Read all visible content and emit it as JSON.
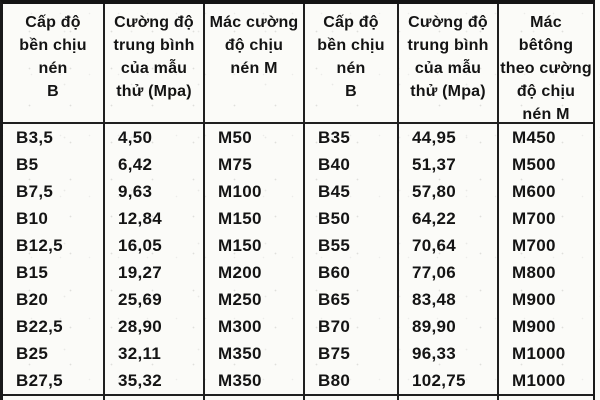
{
  "table": {
    "headers": [
      "Cấp độ\nbền chịu\nnén\nB",
      "Cường độ\ntrung bình\ncủa mẫu\nthử (Mpa)",
      "Mác cường\nđộ chịu\nnén M",
      "Cấp độ\nbền chịu\nnén\nB",
      "Cường độ\ntrung bình\ncủa mẫu\nthử (Mpa)",
      "Mác\nbêtông\ntheo cường\nđộ chịu\nnén M"
    ],
    "rows": [
      [
        "B3,5",
        "4,50",
        "M50",
        "B35",
        "44,95",
        "M450"
      ],
      [
        "B5",
        "6,42",
        "M75",
        "B40",
        "51,37",
        "M500"
      ],
      [
        "B7,5",
        "9,63",
        "M100",
        "B45",
        "57,80",
        "M600"
      ],
      [
        "B10",
        "12,84",
        "M150",
        "B50",
        "64,22",
        "M700"
      ],
      [
        "B12,5",
        "16,05",
        "M150",
        "B55",
        "70,64",
        "M700"
      ],
      [
        "B15",
        "19,27",
        "M200",
        "B60",
        "77,06",
        "M800"
      ],
      [
        "B20",
        "25,69",
        "M250",
        "B65",
        "83,48",
        "M900"
      ],
      [
        "B22,5",
        "28,90",
        "M300",
        "B70",
        "89,90",
        "M900"
      ],
      [
        "B25",
        "32,11",
        "M350",
        "B75",
        "96,33",
        "M1000"
      ],
      [
        "B27,5",
        "35,32",
        "M350",
        "B80",
        "102,75",
        "M1000"
      ]
    ],
    "colors": {
      "ink": "#141414",
      "paper": "#fbfbf8",
      "rule": "#1f1f1f"
    }
  }
}
